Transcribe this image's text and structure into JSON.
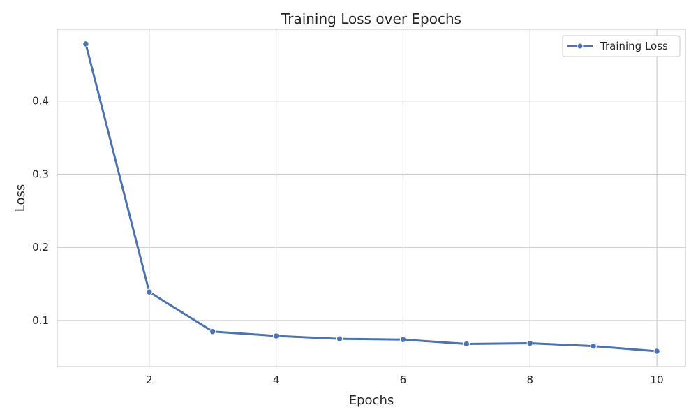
{
  "chart_data": {
    "type": "line",
    "title": "Training Loss over Epochs",
    "xlabel": "Epochs",
    "ylabel": "Loss",
    "xlim": [
      0.55,
      10.45
    ],
    "ylim": [
      0.037,
      0.498
    ],
    "xticks": [
      2,
      4,
      6,
      8,
      10
    ],
    "yticks": [
      0.1,
      0.2,
      0.3,
      0.4
    ],
    "xtick_labels": [
      "2",
      "4",
      "6",
      "8",
      "10"
    ],
    "ytick_labels": [
      "0.1",
      "0.2",
      "0.3",
      "0.4"
    ],
    "grid": true,
    "legend_position": "top-right",
    "x": [
      1,
      2,
      3,
      4,
      5,
      6,
      7,
      8,
      9,
      10
    ],
    "series": [
      {
        "name": "Training Loss",
        "color": "#4c72b0",
        "values": [
          0.478,
          0.139,
          0.085,
          0.079,
          0.075,
          0.074,
          0.068,
          0.069,
          0.065,
          0.058
        ]
      }
    ]
  }
}
